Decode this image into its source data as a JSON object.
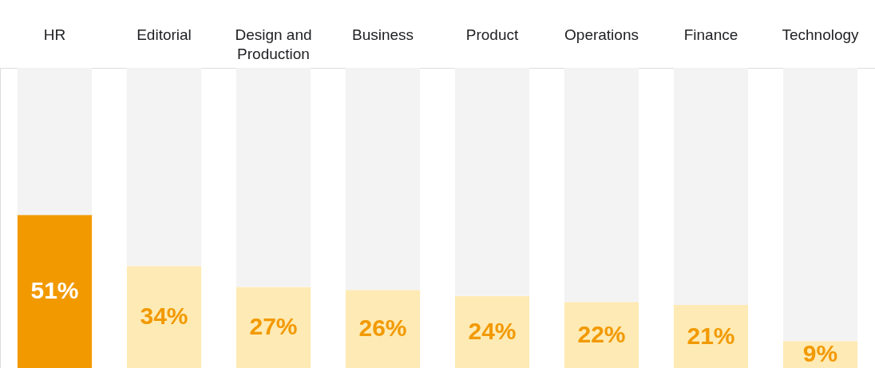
{
  "chart_data": {
    "type": "bar",
    "stacked": true,
    "categories": [
      "HR",
      "Editorial",
      "Design and Production",
      "Business",
      "Product",
      "Operations",
      "Finance",
      "Technology"
    ],
    "ylim": [
      0,
      100
    ],
    "tick_labels": "x",
    "grid": false,
    "series": [
      {
        "colors": [
          "#f29900",
          "#feeab4",
          "#feeab4",
          "#feeab4",
          "#feeab4",
          "#feeab4",
          "#feeab4",
          "#feeab4"
        ],
        "values": [
          51,
          34,
          27,
          26,
          24,
          22,
          21,
          9
        ],
        "value_labels": [
          "51%",
          "34%",
          "27%",
          "26%",
          "24%",
          "22%",
          "21%",
          "9%"
        ]
      },
      {
        "color": "#f3f3f3",
        "values": [
          49,
          66,
          73,
          74,
          76,
          78,
          79,
          91
        ]
      }
    ]
  }
}
